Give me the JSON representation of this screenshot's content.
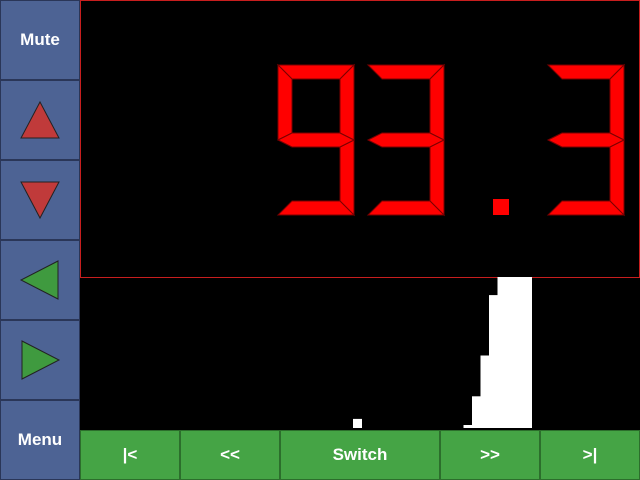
{
  "sidebar": {
    "mute_label": "Mute",
    "menu_label": "Menu"
  },
  "display": {
    "frequency": "93.3",
    "segment_color": "#ff0000"
  },
  "spectrum": {
    "bar_color": "#ffffff",
    "levels": [
      0,
      0,
      0,
      0,
      0,
      0,
      0,
      0,
      0,
      0,
      0,
      0,
      0,
      0,
      0,
      0,
      0,
      0,
      0.06,
      0,
      0,
      0,
      0,
      0,
      0,
      0,
      0,
      0,
      0,
      0,
      0,
      0.02,
      0.21,
      0.48,
      0.88,
      1.0,
      1.0,
      1.0,
      1.0,
      0,
      0,
      0,
      0,
      0,
      0,
      0,
      0,
      0,
      0,
      0,
      0,
      0
    ]
  },
  "bottombar": {
    "skip_start_label": "|<",
    "rewind_label": "<<",
    "switch_label": "Switch",
    "forward_label": ">>",
    "skip_end_label": ">|"
  },
  "colors": {
    "sidebar_button": "#4d6394",
    "bottom_button": "#45a445",
    "arrow_up_down": "#c03a3a",
    "arrow_left_right": "#3f9a3f",
    "display_border": "#c81e1e"
  },
  "icons": [
    "triangle-up-icon",
    "triangle-down-icon",
    "triangle-left-icon",
    "triangle-right-icon"
  ]
}
